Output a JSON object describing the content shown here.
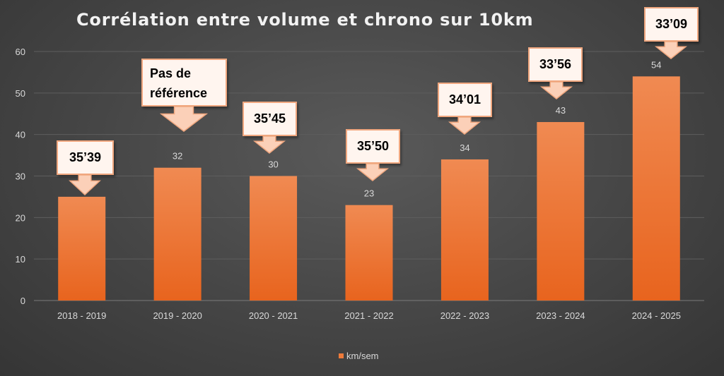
{
  "chart_data": {
    "type": "bar",
    "title": "Corrélation entre volume et chrono sur 10km",
    "categories": [
      "2018 - 2019",
      "2019 - 2020",
      "2020 - 2021",
      "2021 - 2022",
      "2022 - 2023",
      "2023 - 2024",
      "2024 - 2025"
    ],
    "series": [
      {
        "name": "km/sem",
        "values": [
          25,
          32,
          30,
          23,
          34,
          43,
          54
        ]
      }
    ],
    "data_labels": [
      "",
      "32",
      "30",
      "23",
      "34",
      "43",
      "54"
    ],
    "y_ticks": [
      0,
      10,
      20,
      30,
      40,
      50,
      60
    ],
    "ylim": [
      0,
      60
    ],
    "grid": true,
    "legend_position": "bottom",
    "annotations": [
      "35’39",
      "Pas de\nréférence",
      "35’45",
      "35’50",
      "34’01",
      "33’56",
      "33’09"
    ],
    "bar_color": "#ee7a3a"
  }
}
